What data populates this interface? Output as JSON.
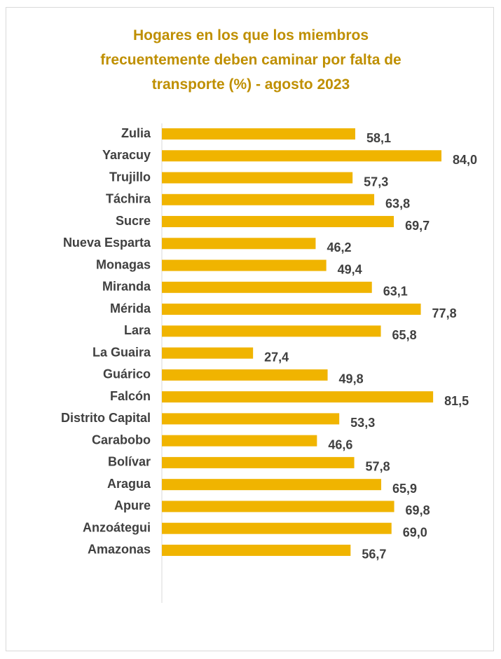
{
  "chart_data": {
    "type": "bar",
    "orientation": "horizontal",
    "title": "Hogares en los que los miembros frecuentemente deben caminar por falta de transporte (%) - agosto 2023",
    "categories": [
      "Zulia",
      "Yaracuy",
      "Trujillo",
      "Táchira",
      "Sucre",
      "Nueva Esparta",
      "Monagas",
      "Miranda",
      "Mérida",
      "Lara",
      "La Guaira",
      "Guárico",
      "Falcón",
      "Distrito Capital",
      "Carabobo",
      "Bolívar",
      "Aragua",
      "Apure",
      "Anzoátegui",
      "Amazonas"
    ],
    "values": [
      58.1,
      84.0,
      57.3,
      63.8,
      69.7,
      46.2,
      49.4,
      63.1,
      77.8,
      65.8,
      27.4,
      49.8,
      81.5,
      53.3,
      46.6,
      57.8,
      65.9,
      69.8,
      69.0,
      56.7
    ],
    "value_labels": [
      "58,1",
      "84,0",
      "57,3",
      "63,8",
      "69,7",
      "46,2",
      "49,4",
      "63,1",
      "77,8",
      "65,8",
      "27,4",
      "49,8",
      "81,5",
      "53,3",
      "46,6",
      "57,8",
      "65,9",
      "69,8",
      "69,0",
      "56,7"
    ],
    "color": "#f0b400"
  }
}
